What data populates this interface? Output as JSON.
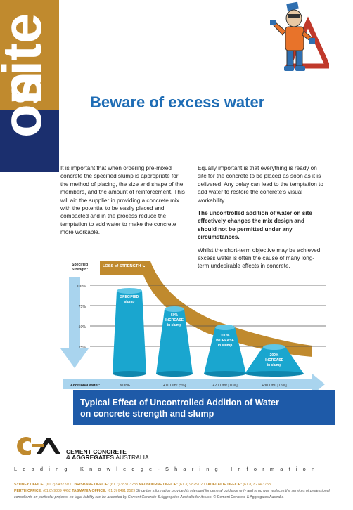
{
  "side_banner": {
    "top_word": "site",
    "bottom_word": "on"
  },
  "headline": "Beware of excess water",
  "body": {
    "left_paragraph": "It is important that when ordering pre-mixed concrete the specified slump is appropriate for the method of placing, the size and shape of the members, and the amount of reinforcement. This will aid the supplier in providing a concrete mix with the potential to be easily placed and compacted and in the process reduce the temptation to add water to make the concrete more workable.",
    "right_paragraph_1": "Equally important is that everything is ready on site for the concrete to be placed as soon as it is delivered. Any delay can lead to the temptation to add water to restore the concrete’s visual workability.",
    "right_paragraph_bold": "The uncontrolled addition of water on site effectively changes the mix design and should not be permitted under any circumstances.",
    "right_paragraph_2": "Whilst the short-term objective may be achieved, excess water is often the cause of many long-term undesirable effects in concrete."
  },
  "figure": {
    "strength_label_1": "Specified",
    "strength_label_2": "Strength:",
    "loss_label": "LOSS of STRENGTH ↘",
    "y_ticks": [
      "100%",
      "75%",
      "50%",
      "25%"
    ],
    "additional_water_label": "Additional water:",
    "water_levels": [
      "NONE",
      "+10 L/m³ [5%]",
      "+20 L/m³ [10%]",
      "+30 L/m³ [15%]"
    ],
    "cones": [
      {
        "line1": "SPECIFIED",
        "line2": "slump",
        "line3": "",
        "strength_pct": 100
      },
      {
        "line1": "50%",
        "line2": "INCREASE",
        "line3": "in slump",
        "strength_pct": 75
      },
      {
        "line1": "100%",
        "line2": "INCREASE",
        "line3": "in slump",
        "strength_pct": 50
      },
      {
        "line1": "200%",
        "line2": "INCREASE",
        "line3": "in slump",
        "strength_pct": 25
      }
    ],
    "caption_line1": "Typical Effect of Uncontrolled Addition of Water",
    "caption_line2": "on concrete strength and slump"
  },
  "brand": {
    "line1": "CEMENT CONCRETE",
    "line2_a": "& AGGREGATES ",
    "line2_b": "AUSTRALIA",
    "tagline": "Leading Knowledge-Sharing Information"
  },
  "offices": {
    "sydney_k": "SYDNEY OFFICE:",
    "sydney_v": "(61 2) 9437 9711",
    "brisbane_k": "BRISBANE OFFICE:",
    "brisbane_v": "(61 7) 3831 3288",
    "melbourne_k": "MELBOURNE OFFICE:",
    "melbourne_v": "(61 3) 9825 0200",
    "adelaide_k": "ADELAIDE OFFICE:",
    "adelaide_v": "(61 8) 8274 3758",
    "perth_k": "PERTH OFFICE:",
    "perth_v": "(61 8) 9389 4452",
    "tasmania_k": "TASMANIA OFFICE:",
    "tasmania_v": "(61 3) 6491 2529",
    "disclaimer": "Since the information provided is intended for general guidance only and in no way replaces the services of professional consultants on particular projects, no legal liability can be accepted by Cement Concrete & Aggregates Australia for its use.",
    "copyright": "© Cement Concrete & Aggregates Australia"
  },
  "colors": {
    "gold": "#c08a2e",
    "navy": "#1b2f6e",
    "headline_blue": "#1f6db5",
    "cone_teal": "#1aa6cf",
    "arrow_light_blue": "#a9d4ee",
    "caption_blue": "#1e5aa8"
  }
}
